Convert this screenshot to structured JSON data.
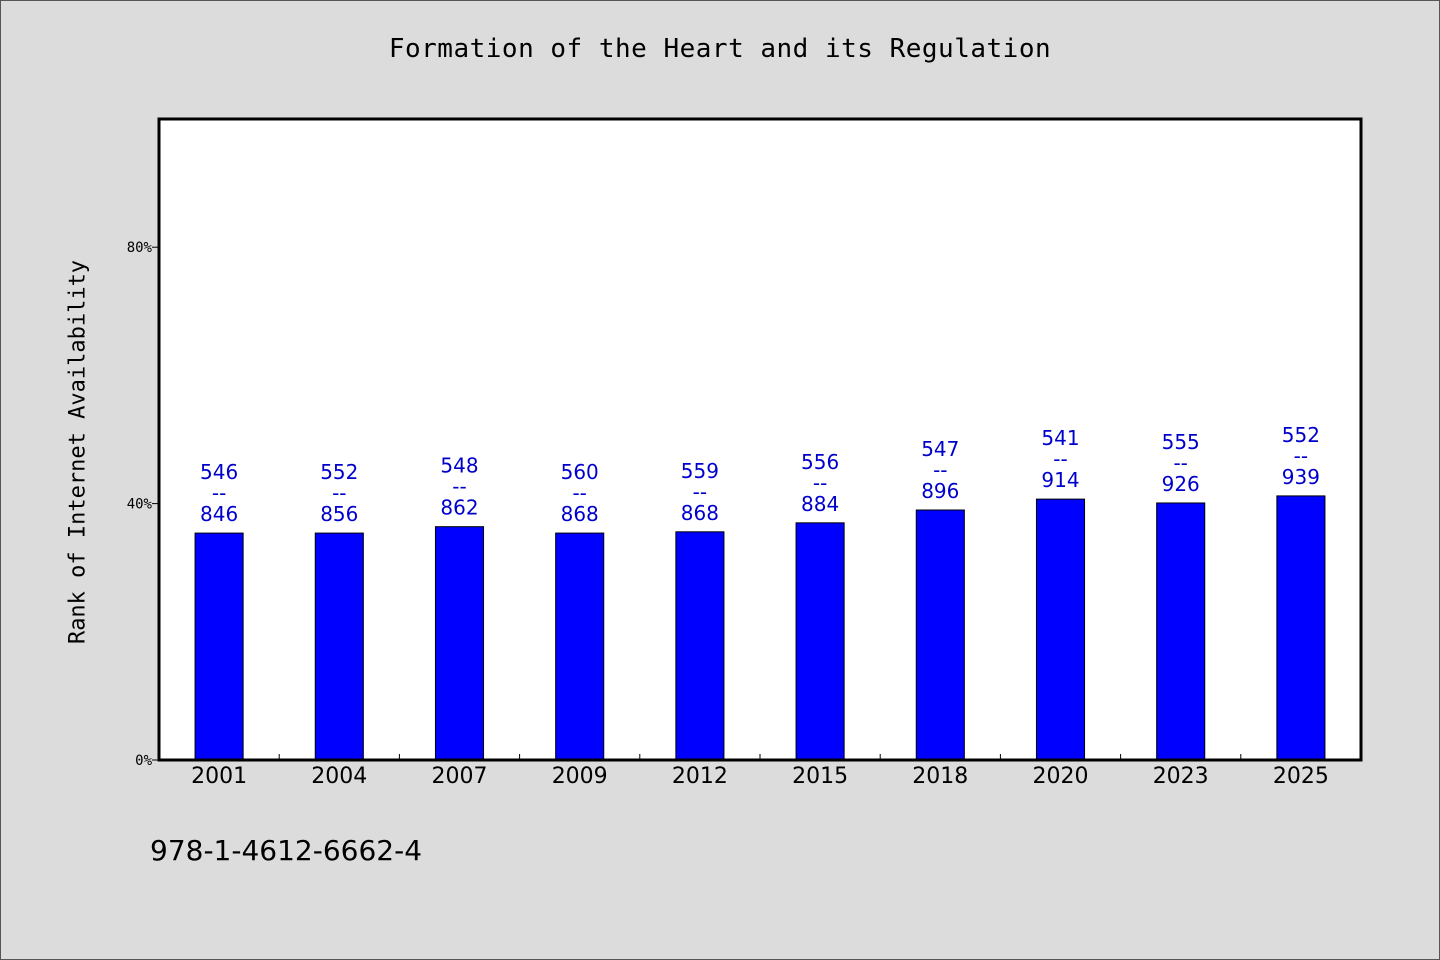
{
  "chart_data": {
    "type": "bar",
    "title": "Formation of the Heart and its Regulation",
    "xlabel": "",
    "ylabel": "Rank of Internet Availability",
    "categories": [
      "2001",
      "2004",
      "2007",
      "2009",
      "2012",
      "2015",
      "2018",
      "2020",
      "2023",
      "2025"
    ],
    "series": [
      {
        "values": [
          35.4,
          35.4,
          36.4,
          35.4,
          35.6,
          37.0,
          39.0,
          40.7,
          40.1,
          41.2
        ],
        "data_labels": [
          [
            "546",
            "--",
            "846"
          ],
          [
            "552",
            "--",
            "856"
          ],
          [
            "548",
            "--",
            "862"
          ],
          [
            "560",
            "--",
            "868"
          ],
          [
            "559",
            "--",
            "868"
          ],
          [
            "556",
            "--",
            "884"
          ],
          [
            "547",
            "--",
            "896"
          ],
          [
            "541",
            "--",
            "914"
          ],
          [
            "555",
            "--",
            "926"
          ],
          [
            "552",
            "--",
            "939"
          ]
        ]
      }
    ],
    "yticks": [
      {
        "value": 0,
        "label": "0%"
      },
      {
        "value": 40,
        "label": "40%"
      },
      {
        "value": 80,
        "label": "80%"
      }
    ],
    "ylim": [
      0,
      100
    ],
    "grid": false,
    "bar_color": "#0000ff",
    "label_color": "#0000cc"
  },
  "footer": {
    "code": "978-1-4612-6662-4"
  }
}
